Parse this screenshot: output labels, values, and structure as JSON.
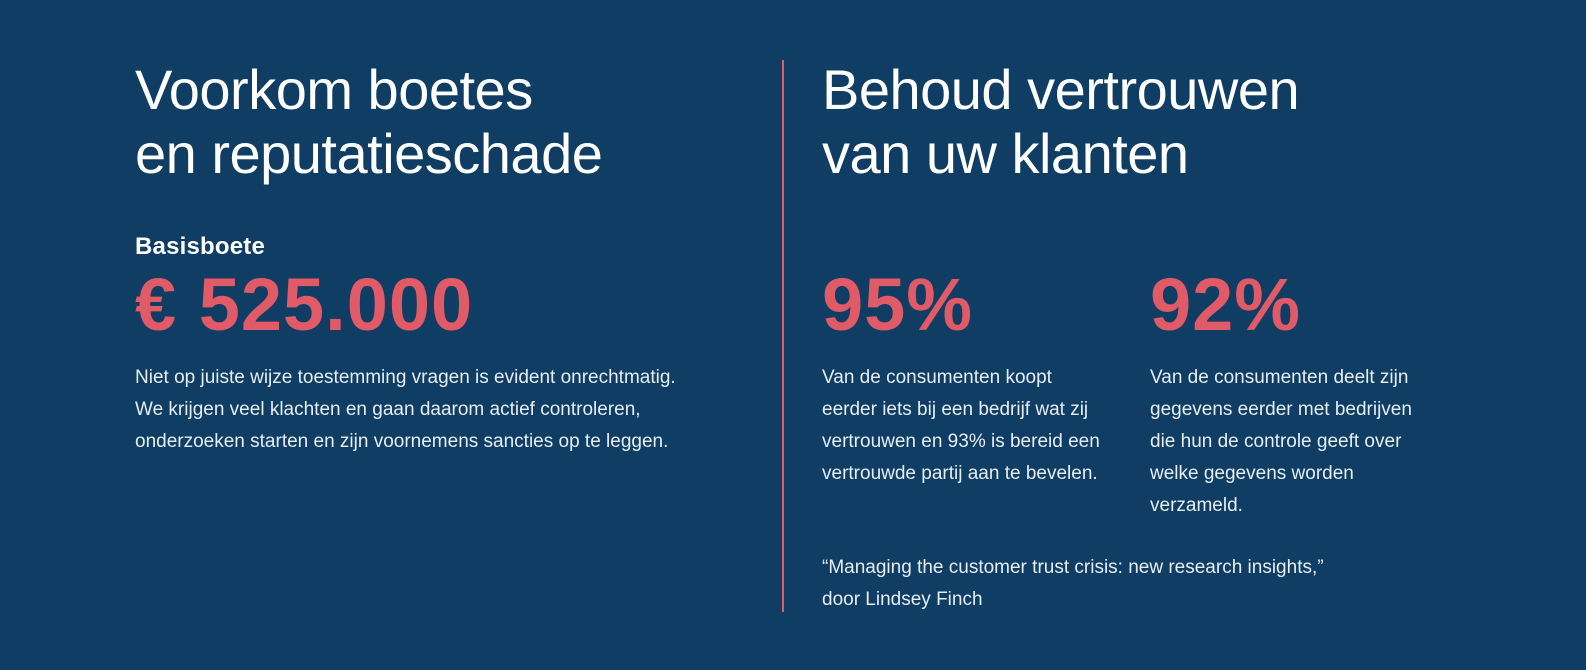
{
  "left": {
    "heading_line1": "Voorkom boetes",
    "heading_line2": "en reputatieschade",
    "fine_label": "Basisboete",
    "fine_amount": "€ 525.000",
    "description": "Niet op juiste wijze toestemming vragen is evident onrechtmatig. We krijgen veel klachten en gaan daarom actief controleren, onderzoeken starten en zijn voornemens sancties op te leggen."
  },
  "right": {
    "heading_line1": "Behoud vertrouwen",
    "heading_line2": "van uw klanten",
    "stats": [
      {
        "percentage": "95%",
        "text": "Van de consumenten koopt eerder iets bij een bedrijf wat zij vertrouwen en 93% is bereid een vertrouwde partij aan te bevelen."
      },
      {
        "percentage": "92%",
        "text": "Van de consumenten deelt zijn gegevens eerder met bedrijven die hun de controle geeft over welke gegevens worden verzameld."
      }
    ],
    "source_line1": "“Managing the customer trust crisis: new research insights,”",
    "source_line2": "door Lindsey Finch"
  },
  "colors": {
    "background": "#0f3d63",
    "accent": "#e05a67",
    "text": "#ffffff"
  }
}
